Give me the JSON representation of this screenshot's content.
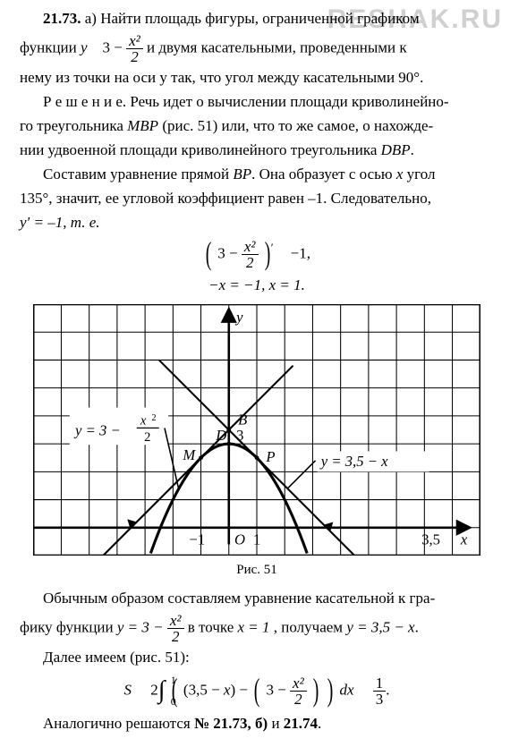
{
  "watermark": "RESHAK.RU",
  "problem": {
    "number": "21.73.",
    "part": "а)",
    "intro1": "Найти площадь фигуры, ограниченной графиком",
    "intro2_prefix": "функции ",
    "intro2_yeq": "y",
    "intro2_const": "3 −",
    "intro2_frac_num": "x²",
    "intro2_frac_den": "2",
    "intro2_suffix": " и двумя касательными, проведенными к",
    "intro3": "нему из точки на оси y так, что угол между касательными 90°."
  },
  "solution": {
    "label": "Р е ш е н и е.",
    "s1a": " Речь идет о вычислении площади криволинейно-",
    "s1b": "го треугольника ",
    "mbp": "MBP",
    "s1c": " (рис. 51) или, что то же самое, о нахожде-",
    "s1d": "нии удвоенной площади криволинейного треугольника ",
    "dbp": "DBP",
    "s1e": ".",
    "s2a": "Составим уравнение прямой ",
    "bp": "BP",
    "s2b": ". Она образует с осью ",
    "x_it": "x",
    "s2c": " угол",
    "s2d": "135°, значит, ее угловой коэффициент равен –1. Следовательно,",
    "s2e": "y′ = –1, т. е.",
    "eq1_left_const": "3 −",
    "eq1_frac_num": "x²",
    "eq1_frac_den": "2",
    "eq1_prime": "′",
    "eq1_rhs": "−1,",
    "eq2": "−x = −1,  x = 1."
  },
  "figure": {
    "caption": "Рис. 51",
    "grid": {
      "cols": 16,
      "rows": 9,
      "cell": 30
    },
    "style": {
      "bg": "#ffffff",
      "grid_color": "#000000",
      "grid_stroke": 1,
      "border_stroke": 2.5,
      "curve_stroke": 3,
      "tangent_stroke": 2,
      "arrow_stroke": 2.5,
      "font_family": "Times New Roman, serif",
      "label_size": 16,
      "label_style": "italic"
    },
    "origin_cell": {
      "col": 7,
      "row": 8
    },
    "axes": {
      "x_label": "x",
      "y_label": "y",
      "x_tick_neg1": "−1",
      "x_tick_1": "1",
      "x_tick_35": "3,5",
      "O_label": "O"
    },
    "labels": {
      "B": "B",
      "M": "M",
      "D": "D",
      "P": "P",
      "three": "3",
      "y_parabola": "y = 3 − x²/2",
      "y_tangent": "y = 3,5 − x"
    }
  },
  "post": {
    "p1a": "Обычным образом составляем уравнение касательной к гра-",
    "p1b_pref": "фику функции ",
    "p1b_yeq": "y = 3 −",
    "p1b_num": "x²",
    "p1b_den": "2",
    "p1b_mid": " в точке ",
    "p1b_x1": "x = 1",
    "p1b_get": ", получаем ",
    "p1b_res": "y = 3,5 − x",
    "p1b_dot": ".",
    "p2": "Далее имеем (рис. 51):",
    "S": "S",
    "two": "2",
    "dx": "dx",
    "one_third_num": "1",
    "one_third_den": "3",
    "tail": "Аналогично решаются ",
    "tail_b": "№ 21.73, б)",
    "tail_and": " и ",
    "tail_c": "21.74",
    "tail_dot": "."
  }
}
